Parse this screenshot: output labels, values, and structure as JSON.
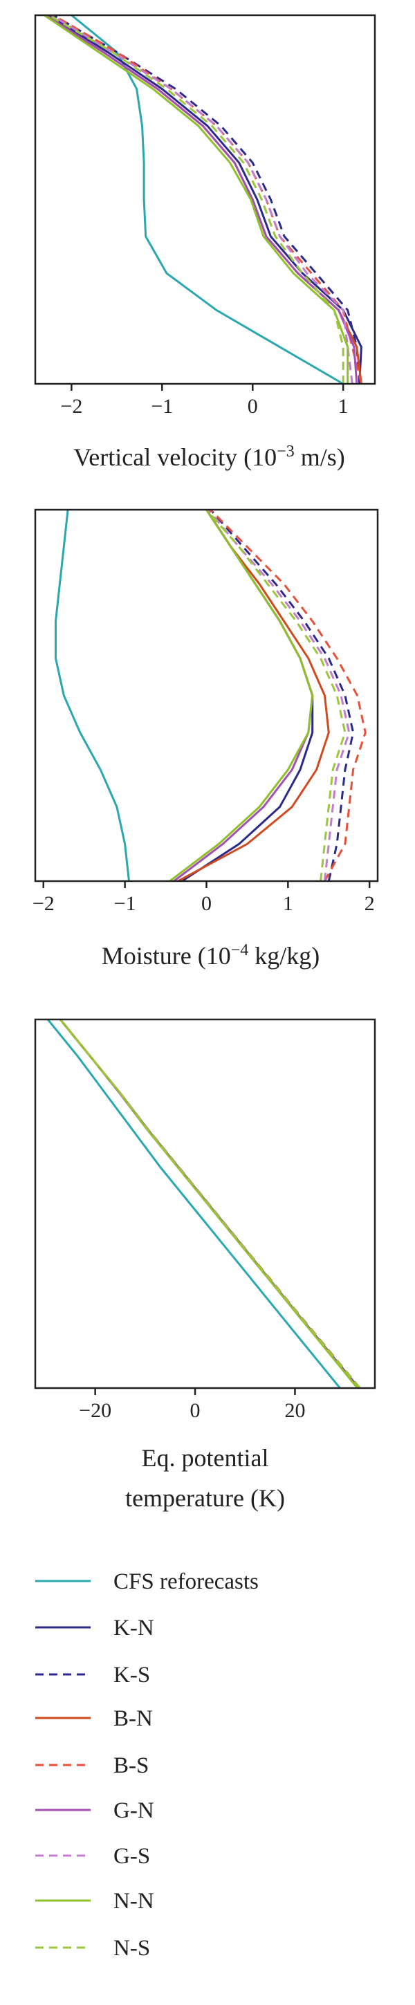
{
  "legend": [
    {
      "name": "CFS reforecasts",
      "color": "#2aa8b0",
      "dash": false
    },
    {
      "name": "K-N",
      "color": "#2b2a8c",
      "dash": false
    },
    {
      "name": "K-S",
      "color": "#2b2a8c",
      "dash": true
    },
    {
      "name": "B-N",
      "color": "#cf4a1e",
      "dash": false
    },
    {
      "name": "B-S",
      "color": "#e8503a",
      "dash": true
    },
    {
      "name": "G-N",
      "color": "#a44fb5",
      "dash": false
    },
    {
      "name": "G-S",
      "color": "#c47ccf",
      "dash": true
    },
    {
      "name": "N-N",
      "color": "#8fbf2a",
      "dash": false
    },
    {
      "name": "N-S",
      "color": "#9cc63c",
      "dash": true
    }
  ],
  "chart_data": [
    {
      "type": "line",
      "xlabel": [
        [
          {
            "text": "Vertical velocity (10"
          },
          {
            "text": "−3",
            "sup": true
          },
          {
            "text": " m/s)"
          }
        ]
      ],
      "xlim": [
        -2.4,
        1.35
      ],
      "xticks": [
        {
          "value": -2,
          "label": "−2"
        },
        {
          "value": -1,
          "label": "−1"
        },
        0,
        1
      ],
      "series": [
        {
          "values": [
            1.0,
            0.3,
            -0.4,
            -0.95,
            -1.18,
            -1.2,
            -1.2,
            -1.22,
            -1.28,
            -1.5,
            -2.0
          ]
        },
        {
          "values": [
            1.18,
            1.2,
            1.0,
            0.55,
            0.2,
            0.05,
            -0.15,
            -0.5,
            -1.0,
            -1.6,
            -2.25
          ]
        },
        {
          "values": [
            1.18,
            1.15,
            1.05,
            0.7,
            0.35,
            0.2,
            0.0,
            -0.35,
            -0.85,
            -1.5,
            -2.2
          ]
        },
        {
          "values": [
            1.2,
            1.15,
            0.95,
            0.5,
            0.15,
            0.0,
            -0.2,
            -0.55,
            -1.05,
            -1.65,
            -2.28
          ]
        },
        {
          "values": [
            1.2,
            1.1,
            1.0,
            0.65,
            0.3,
            0.15,
            -0.05,
            -0.4,
            -0.9,
            -1.5,
            -2.2
          ]
        },
        {
          "values": [
            1.15,
            1.12,
            0.95,
            0.5,
            0.15,
            0.0,
            -0.2,
            -0.55,
            -1.05,
            -1.65,
            -2.28
          ]
        },
        {
          "values": [
            1.1,
            1.05,
            1.0,
            0.6,
            0.3,
            0.15,
            -0.05,
            -0.4,
            -0.9,
            -1.55,
            -2.22
          ]
        },
        {
          "values": [
            1.05,
            1.05,
            0.9,
            0.45,
            0.12,
            -0.02,
            -0.25,
            -0.6,
            -1.1,
            -1.7,
            -2.3
          ]
        },
        {
          "values": [
            1.0,
            1.0,
            0.9,
            0.55,
            0.25,
            0.1,
            -0.1,
            -0.45,
            -0.95,
            -1.55,
            -2.25
          ]
        }
      ]
    },
    {
      "type": "line",
      "xlabel": [
        [
          {
            "text": "Moisture (10"
          },
          {
            "text": "−4",
            "sup": true
          },
          {
            "text": " kg/kg)"
          }
        ]
      ],
      "xlim": [
        -2.1,
        2.1
      ],
      "xticks": [
        {
          "value": -2,
          "label": "−2"
        },
        {
          "value": -1,
          "label": "−1"
        },
        0,
        1,
        2
      ],
      "series": [
        {
          "values": [
            -0.95,
            -1.0,
            -1.1,
            -1.3,
            -1.55,
            -1.75,
            -1.85,
            -1.85,
            -1.8,
            -1.75,
            -1.7
          ]
        },
        {
          "values": [
            -0.3,
            0.4,
            0.9,
            1.15,
            1.3,
            1.3,
            1.15,
            0.9,
            0.6,
            0.3,
            0.0
          ]
        },
        {
          "values": [
            1.5,
            1.6,
            1.65,
            1.7,
            1.8,
            1.7,
            1.5,
            1.2,
            0.85,
            0.45,
            0.05
          ]
        },
        {
          "values": [
            -0.35,
            0.5,
            1.05,
            1.35,
            1.5,
            1.45,
            1.25,
            0.95,
            0.65,
            0.3,
            0.0
          ]
        },
        {
          "values": [
            1.45,
            1.7,
            1.75,
            1.8,
            1.95,
            1.85,
            1.6,
            1.3,
            0.95,
            0.5,
            0.05
          ]
        },
        {
          "values": [
            -0.4,
            0.2,
            0.7,
            1.05,
            1.25,
            1.3,
            1.15,
            0.9,
            0.6,
            0.3,
            0.0
          ]
        },
        {
          "values": [
            1.45,
            1.5,
            1.55,
            1.6,
            1.75,
            1.65,
            1.45,
            1.15,
            0.8,
            0.4,
            0.02
          ]
        },
        {
          "values": [
            -0.45,
            0.15,
            0.65,
            1.0,
            1.25,
            1.3,
            1.15,
            0.9,
            0.6,
            0.3,
            0.0
          ]
        },
        {
          "values": [
            1.4,
            1.45,
            1.5,
            1.55,
            1.7,
            1.6,
            1.4,
            1.1,
            0.75,
            0.4,
            0.0
          ]
        }
      ]
    },
    {
      "type": "line",
      "xlabel": [
        [
          {
            "text": "Eq. potential"
          }
        ],
        [
          {
            "text": "temperature (K)"
          }
        ]
      ],
      "xlim": [
        -32,
        36
      ],
      "xticks": [
        {
          "value": -20,
          "label": "−20"
        },
        0,
        20
      ],
      "series": [
        {
          "values": [
            29,
            23,
            17,
            11,
            5,
            -1,
            -7,
            -12.5,
            -18,
            -23.5,
            -29.5
          ]
        },
        {
          "values": [
            32.8,
            26.7,
            20.6,
            14.6,
            8.6,
            2.6,
            -3.4,
            -9.4,
            -15,
            -21,
            -27
          ]
        },
        {
          "values": [
            33,
            26.9,
            20.8,
            14.7,
            8.7,
            2.7,
            -3.3,
            -9.3,
            -15,
            -21,
            -27
          ]
        },
        {
          "values": [
            32.6,
            26.6,
            20.5,
            14.5,
            8.5,
            2.5,
            -3.5,
            -9.5,
            -15.1,
            -21,
            -27
          ]
        },
        {
          "values": [
            33,
            26.9,
            20.8,
            14.8,
            8.7,
            2.7,
            -3.3,
            -9.3,
            -15,
            -21,
            -27
          ]
        },
        {
          "values": [
            32.7,
            26.6,
            20.5,
            14.5,
            8.5,
            2.5,
            -3.5,
            -9.5,
            -15.1,
            -21,
            -27
          ]
        },
        {
          "values": [
            33,
            26.8,
            20.8,
            14.7,
            8.7,
            2.7,
            -3.3,
            -9.3,
            -15,
            -21,
            -27
          ]
        },
        {
          "values": [
            32.5,
            26.5,
            20.5,
            14.5,
            8.5,
            2.5,
            -3.5,
            -9.5,
            -15,
            -21,
            -27
          ]
        },
        {
          "values": [
            33,
            26.8,
            20.7,
            14.7,
            8.6,
            2.6,
            -3.4,
            -9.4,
            -15,
            -21,
            -27
          ]
        }
      ]
    }
  ]
}
